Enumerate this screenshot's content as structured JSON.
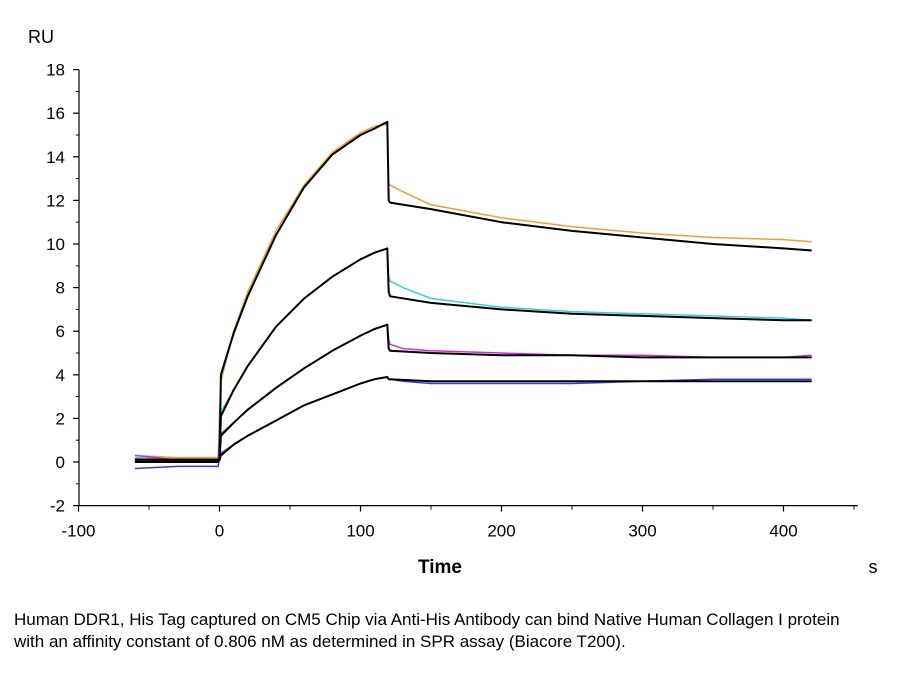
{
  "chart_data": {
    "type": "line",
    "title": "",
    "xlabel": "Time",
    "x_unit": "s",
    "ylabel": "RU",
    "xlim": [
      -100,
      450
    ],
    "ylim": [
      -2,
      18
    ],
    "x_ticks": [
      -100,
      0,
      100,
      200,
      300,
      400
    ],
    "y_ticks": [
      -2,
      0,
      2,
      4,
      6,
      8,
      10,
      12,
      14,
      16,
      18
    ],
    "grid": false,
    "legend": "none",
    "series": [
      {
        "color": "#e8a23a",
        "x": [
          -60,
          -30,
          -1,
          0,
          1,
          10,
          20,
          40,
          60,
          80,
          100,
          110,
          119,
          120,
          121,
          130,
          150,
          200,
          250,
          300,
          350,
          400,
          420
        ],
        "values": [
          0.3,
          0.2,
          0.2,
          2.2,
          3.7,
          6.0,
          7.8,
          10.6,
          12.7,
          14.2,
          15.1,
          15.4,
          15.5,
          12.8,
          12.7,
          12.4,
          11.8,
          11.2,
          10.8,
          10.5,
          10.3,
          10.2,
          10.1
        ]
      },
      {
        "color": "#3fcfcf",
        "x": [
          -60,
          -30,
          -1,
          0,
          1,
          10,
          20,
          40,
          60,
          80,
          100,
          110,
          119,
          120,
          121,
          130,
          150,
          200,
          250,
          300,
          350,
          400,
          420
        ],
        "values": [
          0.2,
          0.1,
          0.1,
          1.5,
          2.3,
          3.3,
          4.4,
          6.2,
          7.5,
          8.5,
          9.3,
          9.6,
          9.8,
          8.5,
          8.3,
          8.0,
          7.5,
          7.1,
          6.9,
          6.8,
          6.7,
          6.6,
          6.5
        ]
      },
      {
        "color": "#cc33cc",
        "x": [
          -60,
          -30,
          -1,
          0,
          1,
          10,
          20,
          40,
          60,
          80,
          100,
          110,
          119,
          120,
          121,
          130,
          150,
          200,
          250,
          300,
          350,
          400,
          420
        ],
        "values": [
          0.3,
          0.1,
          0.1,
          0.9,
          1.3,
          1.8,
          2.4,
          3.4,
          4.3,
          5.1,
          5.8,
          6.1,
          6.3,
          5.6,
          5.4,
          5.2,
          5.1,
          5.0,
          4.9,
          4.9,
          4.8,
          4.8,
          4.9
        ]
      },
      {
        "color": "#2f3fd0",
        "x": [
          -60,
          -30,
          -1,
          0,
          1,
          10,
          20,
          40,
          60,
          80,
          100,
          110,
          119,
          120,
          121,
          130,
          150,
          200,
          250,
          300,
          350,
          400,
          420
        ],
        "values": [
          -0.3,
          -0.2,
          -0.2,
          0.2,
          0.4,
          0.8,
          1.2,
          1.9,
          2.6,
          3.1,
          3.6,
          3.8,
          3.9,
          3.8,
          3.8,
          3.7,
          3.6,
          3.6,
          3.6,
          3.7,
          3.8,
          3.8,
          3.8
        ]
      },
      {
        "color": "#000000",
        "x": [
          -60,
          -1,
          0,
          1,
          10,
          20,
          40,
          60,
          80,
          100,
          110,
          119,
          120,
          121,
          150,
          200,
          250,
          300,
          350,
          400,
          420
        ],
        "values": [
          0.1,
          0.1,
          0.1,
          4.0,
          5.9,
          7.6,
          10.4,
          12.6,
          14.1,
          15.0,
          15.3,
          15.6,
          12.0,
          11.9,
          11.6,
          11.0,
          10.6,
          10.3,
          10.0,
          9.8,
          9.7
        ]
      },
      {
        "color": "#000000",
        "x": [
          -60,
          -1,
          0,
          1,
          10,
          20,
          40,
          60,
          80,
          100,
          110,
          119,
          120,
          121,
          150,
          200,
          250,
          300,
          350,
          400,
          420
        ],
        "values": [
          0.1,
          0.1,
          0.1,
          2.1,
          3.3,
          4.4,
          6.2,
          7.5,
          8.5,
          9.3,
          9.6,
          9.8,
          7.8,
          7.6,
          7.3,
          7.0,
          6.8,
          6.7,
          6.6,
          6.5,
          6.5
        ]
      },
      {
        "color": "#000000",
        "x": [
          -60,
          -1,
          0,
          1,
          10,
          20,
          40,
          60,
          80,
          100,
          110,
          119,
          120,
          121,
          150,
          200,
          250,
          300,
          350,
          400,
          420
        ],
        "values": [
          0.1,
          0.1,
          0.1,
          1.2,
          1.8,
          2.4,
          3.4,
          4.3,
          5.1,
          5.8,
          6.1,
          6.3,
          5.2,
          5.1,
          5.0,
          4.9,
          4.9,
          4.8,
          4.8,
          4.8,
          4.8
        ]
      },
      {
        "color": "#000000",
        "x": [
          -60,
          -1,
          0,
          1,
          10,
          20,
          40,
          60,
          80,
          100,
          110,
          119,
          120,
          121,
          150,
          200,
          250,
          300,
          350,
          400,
          420
        ],
        "values": [
          0.0,
          0.0,
          0.1,
          0.3,
          0.8,
          1.2,
          1.9,
          2.6,
          3.1,
          3.6,
          3.8,
          3.9,
          3.8,
          3.8,
          3.7,
          3.7,
          3.7,
          3.7,
          3.7,
          3.7,
          3.7
        ]
      }
    ]
  },
  "caption": "Human DDR1, His Tag captured on CM5 Chip via Anti-His Antibody can bind Native Human Collagen I protein with an affinity constant of 0.806 nM as determined in SPR assay (Biacore T200)."
}
